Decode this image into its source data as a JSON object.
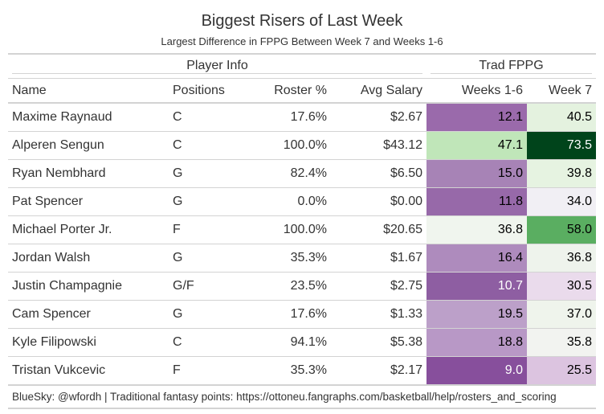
{
  "title": "Biggest Risers of Last Week",
  "subtitle": "Largest Difference in FPPG Between Week 7 and Weeks 1-6",
  "spanners": [
    "Player Info",
    "Trad FPPG"
  ],
  "columns": [
    "Name",
    "Positions",
    "Roster %",
    "Avg Salary",
    "Weeks 1-6",
    "Week 7"
  ],
  "footer": "BlueSky: @wfordh | Traditional fantasy points: https://ottoneu.fangraphs.com/basketball/help/rosters_and_scoring",
  "chart_data": {
    "type": "table",
    "title": "Biggest Risers of Last Week",
    "subtitle": "Largest Difference in FPPG Between Week 7 and Weeks 1-6",
    "rows": [
      {
        "name": "Maxime Raynaud",
        "pos": "C",
        "roster": "17.6%",
        "salary": "$2.67",
        "w16": "12.1",
        "w7": "40.5",
        "c16": "#9a6aab",
        "c7": "#e4f2df"
      },
      {
        "name": "Alperen Sengun",
        "pos": "C",
        "roster": "100.0%",
        "salary": "$43.12",
        "w16": "47.1",
        "w7": "73.5",
        "c16": "#c0e6b9",
        "c7": "#00441b"
      },
      {
        "name": "Ryan Nembhard",
        "pos": "G",
        "roster": "82.4%",
        "salary": "$6.50",
        "w16": "15.0",
        "w7": "39.8",
        "c16": "#a783b6",
        "c7": "#e6f3e1"
      },
      {
        "name": "Pat Spencer",
        "pos": "G",
        "roster": "0.0%",
        "salary": "$0.00",
        "w16": "11.8",
        "w7": "34.0",
        "c16": "#9769a9",
        "c7": "#f1eff4"
      },
      {
        "name": "Michael Porter Jr.",
        "pos": "F",
        "roster": "100.0%",
        "salary": "$20.65",
        "w16": "36.8",
        "w7": "58.0",
        "c16": "#f0f5ee",
        "c7": "#5aae61"
      },
      {
        "name": "Jordan Walsh",
        "pos": "G",
        "roster": "35.3%",
        "salary": "$1.67",
        "w16": "16.4",
        "w7": "36.8",
        "c16": "#ae8bbd",
        "c7": "#eef3ec"
      },
      {
        "name": "Justin Champagnie",
        "pos": "G/F",
        "roster": "23.5%",
        "salary": "$2.75",
        "w16": "10.7",
        "w7": "30.5",
        "c16": "#8e5ea2",
        "c7": "#eadbec"
      },
      {
        "name": "Cam Spencer",
        "pos": "G",
        "roster": "17.6%",
        "salary": "$1.33",
        "w16": "19.5",
        "w7": "37.0",
        "c16": "#bca0c9",
        "c7": "#eff4ec"
      },
      {
        "name": "Kyle Filipowski",
        "pos": "C",
        "roster": "94.1%",
        "salary": "$5.38",
        "w16": "18.8",
        "w7": "35.8",
        "c16": "#b898c6",
        "c7": "#f2f3f0"
      },
      {
        "name": "Tristan Vukcevic",
        "pos": "F",
        "roster": "35.3%",
        "salary": "$2.17",
        "w16": "9.0",
        "w7": "25.5",
        "c16": "#874f9c",
        "c7": "#dcc4e0"
      }
    ]
  }
}
